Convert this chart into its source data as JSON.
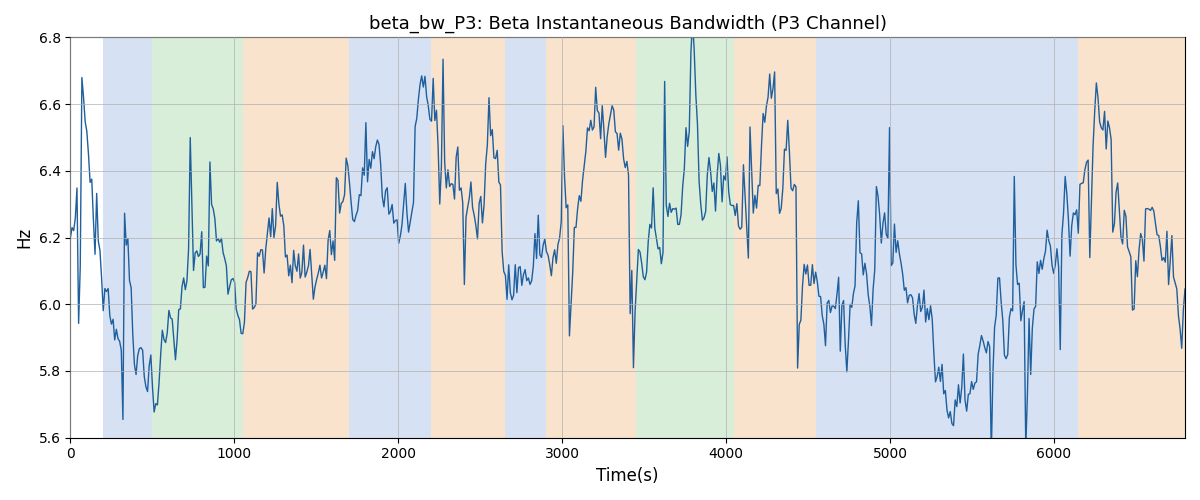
{
  "title": "beta_bw_P3: Beta Instantaneous Bandwidth (P3 Channel)",
  "xlabel": "Time(s)",
  "ylabel": "Hz",
  "ylim": [
    5.6,
    6.8
  ],
  "xlim": [
    0,
    6800
  ],
  "line_color": "#1f5f9e",
  "line_width": 1.0,
  "background_color": "#ffffff",
  "grid_color": "#b0b0b0",
  "figsize": [
    12,
    5
  ],
  "dpi": 100,
  "seed": 42,
  "n_points": 680,
  "mean": 6.2,
  "ar_alpha": 0.97,
  "noise_std": 0.06,
  "colored_bands": [
    {
      "xmin": 200,
      "xmax": 500,
      "color": "#aec6e8",
      "alpha": 0.5
    },
    {
      "xmin": 500,
      "xmax": 1050,
      "color": "#b2dfb2",
      "alpha": 0.5
    },
    {
      "xmin": 1050,
      "xmax": 1700,
      "color": "#f5c99a",
      "alpha": 0.5
    },
    {
      "xmin": 1700,
      "xmax": 2200,
      "color": "#aec6e8",
      "alpha": 0.5
    },
    {
      "xmin": 2200,
      "xmax": 2650,
      "color": "#f5c99a",
      "alpha": 0.5
    },
    {
      "xmin": 2650,
      "xmax": 2900,
      "color": "#aec6e8",
      "alpha": 0.5
    },
    {
      "xmin": 2900,
      "xmax": 3450,
      "color": "#f5c99a",
      "alpha": 0.5
    },
    {
      "xmin": 3450,
      "xmax": 4050,
      "color": "#b2dfb2",
      "alpha": 0.5
    },
    {
      "xmin": 4050,
      "xmax": 4550,
      "color": "#f5c99a",
      "alpha": 0.5
    },
    {
      "xmin": 4550,
      "xmax": 6150,
      "color": "#aec6e8",
      "alpha": 0.5
    },
    {
      "xmin": 6150,
      "xmax": 6800,
      "color": "#f5c99a",
      "alpha": 0.5
    }
  ]
}
